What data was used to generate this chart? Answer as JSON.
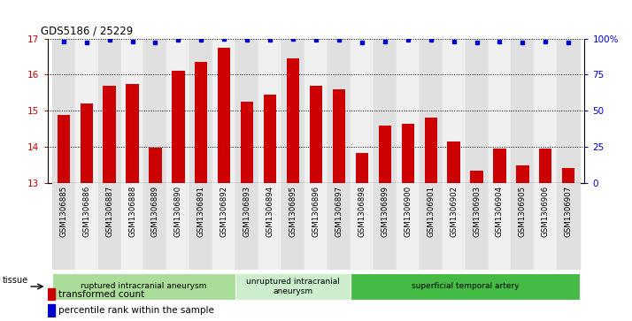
{
  "title": "GDS5186 / 25229",
  "samples": [
    "GSM1306885",
    "GSM1306886",
    "GSM1306887",
    "GSM1306888",
    "GSM1306889",
    "GSM1306890",
    "GSM1306891",
    "GSM1306892",
    "GSM1306893",
    "GSM1306894",
    "GSM1306895",
    "GSM1306896",
    "GSM1306897",
    "GSM1306898",
    "GSM1306899",
    "GSM1306900",
    "GSM1306901",
    "GSM1306902",
    "GSM1306903",
    "GSM1306904",
    "GSM1306905",
    "GSM1306906",
    "GSM1306907"
  ],
  "bar_values": [
    14.88,
    15.2,
    15.7,
    15.75,
    13.98,
    16.1,
    16.35,
    16.75,
    15.25,
    15.45,
    16.45,
    15.7,
    15.6,
    13.82,
    14.6,
    14.65,
    14.82,
    14.15,
    13.35,
    13.95,
    13.48,
    13.95,
    13.42
  ],
  "percentile_values": [
    98,
    97,
    99,
    98,
    97,
    99,
    99,
    100,
    99,
    99,
    100,
    99,
    99,
    97,
    98,
    99,
    99,
    98,
    97,
    98,
    97,
    98,
    97
  ],
  "bar_color": "#cc0000",
  "dot_color": "#0000cc",
  "ylim_left": [
    13,
    17
  ],
  "ylim_right": [
    0,
    100
  ],
  "yticks_left": [
    13,
    14,
    15,
    16,
    17
  ],
  "yticks_right": [
    0,
    25,
    50,
    75,
    100
  ],
  "ytick_labels_right": [
    "0",
    "25",
    "50",
    "75",
    "100%"
  ],
  "groups": [
    {
      "label": "ruptured intracranial aneurysm",
      "start": 0,
      "end": 8,
      "color": "#aadd99"
    },
    {
      "label": "unruptured intracranial\naneurysm",
      "start": 8,
      "end": 13,
      "color": "#cceecc"
    },
    {
      "label": "superficial temporal artery",
      "start": 13,
      "end": 23,
      "color": "#44bb44"
    }
  ],
  "legend_bar_label": "transformed count",
  "legend_dot_label": "percentile rank within the sample",
  "tissue_label": "tissue",
  "plot_bg": "#ffffff",
  "tick_bg_even": "#e0e0e0",
  "tick_bg_odd": "#f0f0f0"
}
